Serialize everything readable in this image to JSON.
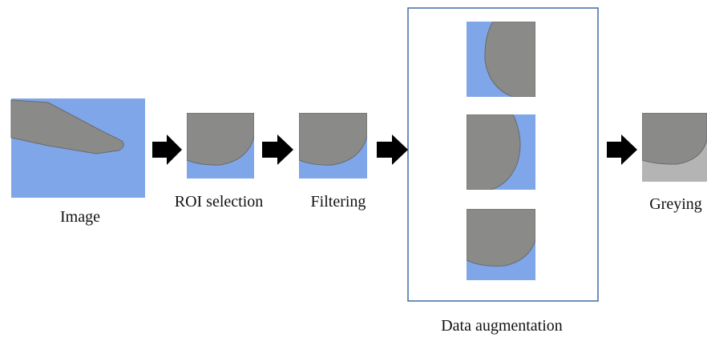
{
  "nodes": [
    {
      "label": "Image"
    },
    {
      "label": "ROI selection"
    },
    {
      "label": "Filtering"
    },
    {
      "label": "Data augmentation"
    },
    {
      "label": "Greying"
    }
  ]
}
